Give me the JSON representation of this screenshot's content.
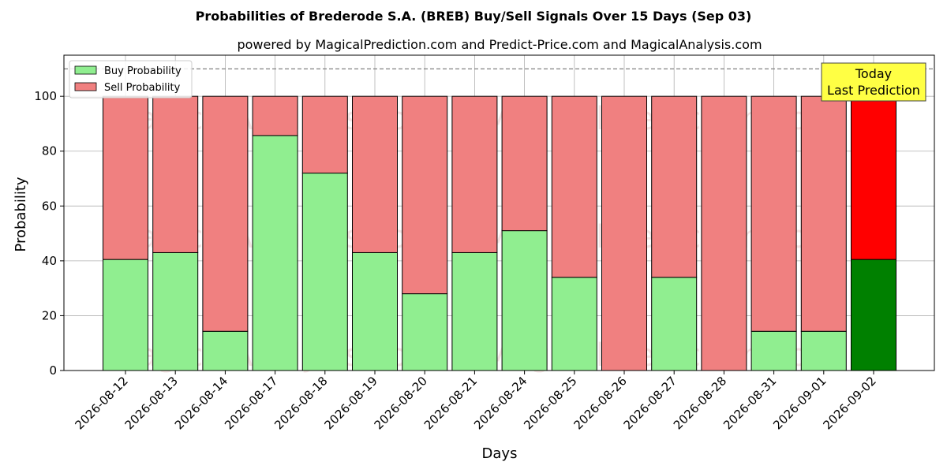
{
  "chart_data": {
    "type": "bar",
    "stacked": true,
    "title": "Probabilities of Brederode S.A. (BREB) Buy/Sell Signals Over 15 Days (Sep 03)",
    "subtitle": "powered by MagicalPrediction.com and Predict-Price.com and MagicalAnalysis.com",
    "xlabel": "Days",
    "ylabel": "Probability",
    "ylim": [
      0,
      115
    ],
    "yticks": [
      "0",
      "20",
      "40",
      "60",
      "80",
      "100"
    ],
    "grid": true,
    "legend_position": "top-left",
    "reference_line": 110,
    "categories": [
      "2026-08-12",
      "2026-08-13",
      "2026-08-14",
      "2026-08-17",
      "2026-08-18",
      "2026-08-19",
      "2026-08-20",
      "2026-08-21",
      "2026-08-24",
      "2026-08-25",
      "2026-08-26",
      "2026-08-27",
      "2026-08-28",
      "2026-08-31",
      "2026-09-01",
      "2026-09-02"
    ],
    "series": [
      {
        "name": "Buy Probability",
        "color": "#90ee90",
        "today_color": "#008000",
        "values": [
          40.5,
          43,
          14.3,
          85.7,
          72,
          43,
          28,
          43,
          51,
          34,
          0,
          34,
          0,
          14.3,
          14.3,
          40.5
        ]
      },
      {
        "name": "Sell Probability",
        "color": "#f08080",
        "today_color": "#ff0000",
        "values": [
          59.5,
          57,
          85.7,
          14.3,
          28,
          57,
          72,
          57,
          49,
          66,
          100,
          66,
          100,
          85.7,
          85.7,
          59.5
        ]
      }
    ],
    "annotation": {
      "line1": "Today",
      "line2": "Last Prediction",
      "color": "#ffff44"
    },
    "watermarks": [
      "MagicalAnalysis.com",
      "MagicalPrediction.com"
    ]
  }
}
